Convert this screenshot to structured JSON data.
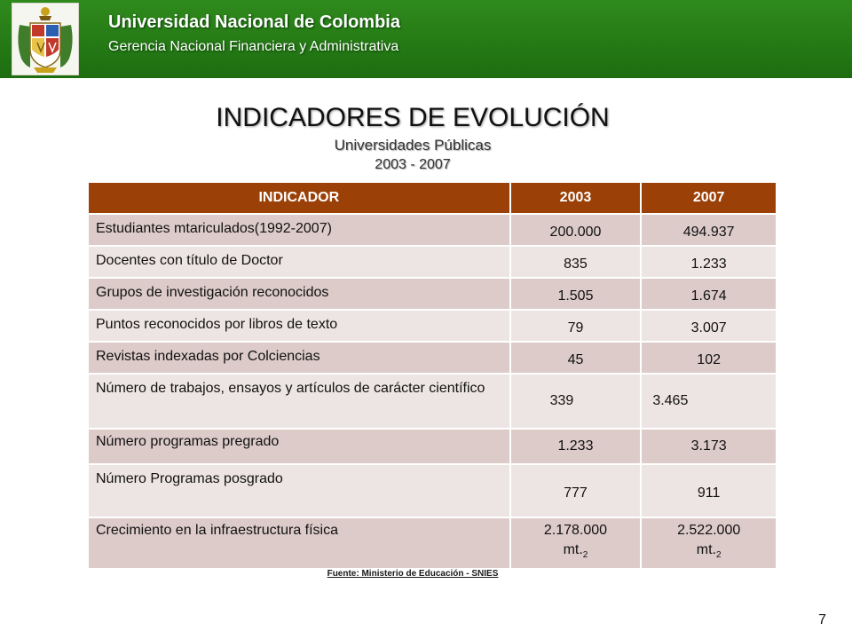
{
  "header": {
    "university": "Universidad Nacional de Colombia",
    "department": "Gerencia Nacional Financiera y Administrativa"
  },
  "title": "INDICADORES DE EVOLUCIÓN",
  "subtitle": "Universidades Públicas",
  "years": "2003 - 2007",
  "table": {
    "headers": [
      "INDICADOR",
      "2003",
      "2007"
    ],
    "rows": [
      {
        "indicator": "Estudiantes  mtariculados(1992-2007)",
        "v2003": "200.000",
        "v2007": "494.937"
      },
      {
        "indicator": "Docentes con título de Doctor",
        "v2003": "835",
        "v2007": "1.233"
      },
      {
        "indicator": "Grupos de investigación reconocidos",
        "v2003": "1.505",
        "v2007": "1.674"
      },
      {
        "indicator": "Puntos reconocidos por libros de texto",
        "v2003": "79",
        "v2007": "3.007"
      },
      {
        "indicator": "Revistas indexadas por Colciencias",
        "v2003": "45",
        "v2007": "102"
      },
      {
        "indicator": "Número de trabajos, ensayos y artículos de carácter científico",
        "v2003": "339",
        "v2007": "3.465"
      },
      {
        "indicator": "Número programas pregrado",
        "v2003": "1.233",
        "v2007": "3.173"
      },
      {
        "indicator": "Número Programas posgrado",
        "v2003": "777",
        "v2007": "911"
      },
      {
        "indicator": "Crecimiento en la infraestructura física",
        "v2003": "2.178.000",
        "v2007": "2.522.000",
        "unit": "mt.",
        "unit_sub": "2"
      }
    ]
  },
  "source": "Fuente: Ministerio de Educación - SNIES",
  "page_number": "7"
}
